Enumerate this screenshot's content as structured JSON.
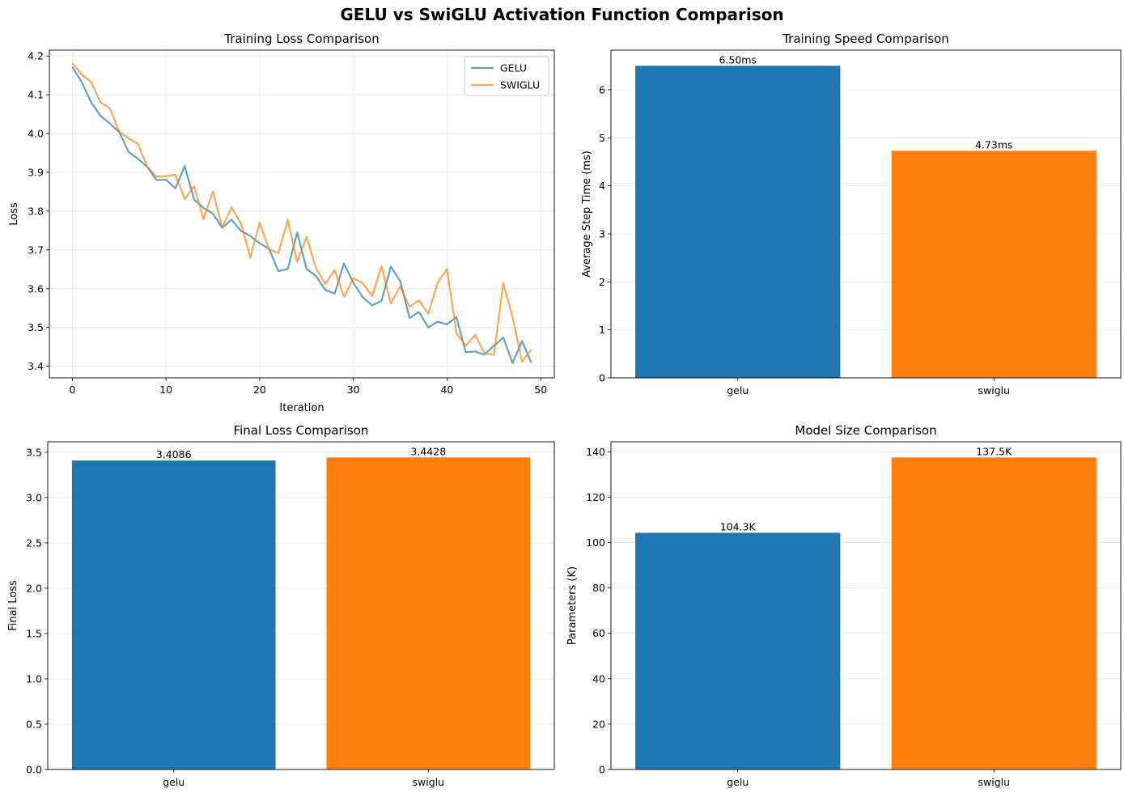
{
  "figure_title": "GELU vs SwiGLU Activation Function Comparison",
  "colors": {
    "gelu": "#1f77b4",
    "swiglu": "#ff7f0e"
  },
  "chart_data": [
    {
      "id": "loss",
      "type": "line",
      "title": "Training Loss Comparison",
      "xlabel": "Iteration",
      "ylabel": "Loss",
      "xlim": [
        -2.45,
        51.45
      ],
      "ylim": [
        3.37,
        4.215
      ],
      "xticks": [
        0,
        10,
        20,
        30,
        40,
        50
      ],
      "yticks": [
        3.4,
        3.5,
        3.6,
        3.7,
        3.8,
        3.9,
        4.0,
        4.1,
        4.2
      ],
      "ytick_labels": [
        "3.4",
        "3.5",
        "3.6",
        "3.7",
        "3.8",
        "3.9",
        "4.0",
        "4.1",
        "4.2"
      ],
      "grid": true,
      "legend": "upper right",
      "series": [
        {
          "name": "GELU",
          "x": [
            0,
            1,
            2,
            3,
            4,
            5,
            6,
            7,
            8,
            9,
            10,
            11,
            12,
            13,
            14,
            15,
            16,
            17,
            18,
            19,
            20,
            21,
            22,
            23,
            24,
            25,
            26,
            27,
            28,
            29,
            30,
            31,
            32,
            33,
            34,
            35,
            36,
            37,
            38,
            39,
            40,
            41,
            42,
            43,
            44,
            45,
            46,
            47,
            48,
            49
          ],
          "values": [
            4.172,
            4.133,
            4.081,
            4.046,
            4.026,
            4.004,
            3.953,
            3.935,
            3.914,
            3.88,
            3.881,
            3.859,
            3.916,
            3.83,
            3.808,
            3.794,
            3.757,
            3.778,
            3.749,
            3.736,
            3.717,
            3.703,
            3.645,
            3.651,
            3.745,
            3.651,
            3.633,
            3.597,
            3.587,
            3.665,
            3.615,
            3.578,
            3.557,
            3.568,
            3.657,
            3.62,
            3.524,
            3.54,
            3.5,
            3.515,
            3.508,
            3.527,
            3.436,
            3.438,
            3.43,
            3.453,
            3.474,
            3.408,
            3.465,
            3.409
          ]
        },
        {
          "name": "SWIGLU",
          "x": [
            0,
            1,
            2,
            3,
            4,
            5,
            6,
            7,
            8,
            9,
            10,
            11,
            12,
            13,
            14,
            15,
            16,
            17,
            18,
            19,
            20,
            21,
            22,
            23,
            24,
            25,
            26,
            27,
            28,
            29,
            30,
            31,
            32,
            33,
            34,
            35,
            36,
            37,
            38,
            39,
            40,
            41,
            42,
            43,
            44,
            45,
            46,
            47,
            48,
            49
          ],
          "values": [
            4.182,
            4.152,
            4.133,
            4.081,
            4.065,
            4.005,
            3.987,
            3.974,
            3.914,
            3.889,
            3.89,
            3.894,
            3.831,
            3.864,
            3.779,
            3.851,
            3.758,
            3.81,
            3.768,
            3.681,
            3.77,
            3.701,
            3.692,
            3.778,
            3.669,
            3.734,
            3.654,
            3.612,
            3.648,
            3.579,
            3.627,
            3.614,
            3.581,
            3.658,
            3.562,
            3.606,
            3.553,
            3.57,
            3.535,
            3.616,
            3.651,
            3.485,
            3.453,
            3.481,
            3.434,
            3.429,
            3.615,
            3.526,
            3.412,
            3.443
          ]
        }
      ]
    },
    {
      "id": "speed",
      "type": "bar",
      "title": "Training Speed Comparison",
      "xlabel": "",
      "ylabel": "Average Step Time (ms)",
      "categories": [
        "gelu",
        "swiglu"
      ],
      "values": [
        6.5,
        4.73
      ],
      "data_labels": [
        "6.50ms",
        "4.73ms"
      ],
      "ylim": [
        0,
        6.825
      ],
      "yticks": [
        0,
        1,
        2,
        3,
        4,
        5,
        6
      ],
      "ytick_labels": [
        "0",
        "1",
        "2",
        "3",
        "4",
        "5",
        "6"
      ],
      "grid": true
    },
    {
      "id": "final",
      "type": "bar",
      "title": "Final Loss Comparison",
      "xlabel": "",
      "ylabel": "Final Loss",
      "categories": [
        "gelu",
        "swiglu"
      ],
      "values": [
        3.4086,
        3.4428
      ],
      "data_labels": [
        "3.4086",
        "3.4428"
      ],
      "ylim": [
        0,
        3.615
      ],
      "yticks": [
        0,
        0.5,
        1.0,
        1.5,
        2.0,
        2.5,
        3.0,
        3.5
      ],
      "ytick_labels": [
        "0.0",
        "0.5",
        "1.0",
        "1.5",
        "2.0",
        "2.5",
        "3.0",
        "3.5"
      ],
      "grid": true
    },
    {
      "id": "size",
      "type": "bar",
      "title": "Model Size Comparison",
      "xlabel": "",
      "ylabel": "Parameters (K)",
      "categories": [
        "gelu",
        "swiglu"
      ],
      "values": [
        104.3,
        137.5
      ],
      "data_labels": [
        "104.3K",
        "137.5K"
      ],
      "ylim": [
        0,
        144.4
      ],
      "yticks": [
        0,
        20,
        40,
        60,
        80,
        100,
        120,
        140
      ],
      "ytick_labels": [
        "0",
        "20",
        "40",
        "60",
        "80",
        "100",
        "120",
        "140"
      ],
      "grid": true
    }
  ]
}
